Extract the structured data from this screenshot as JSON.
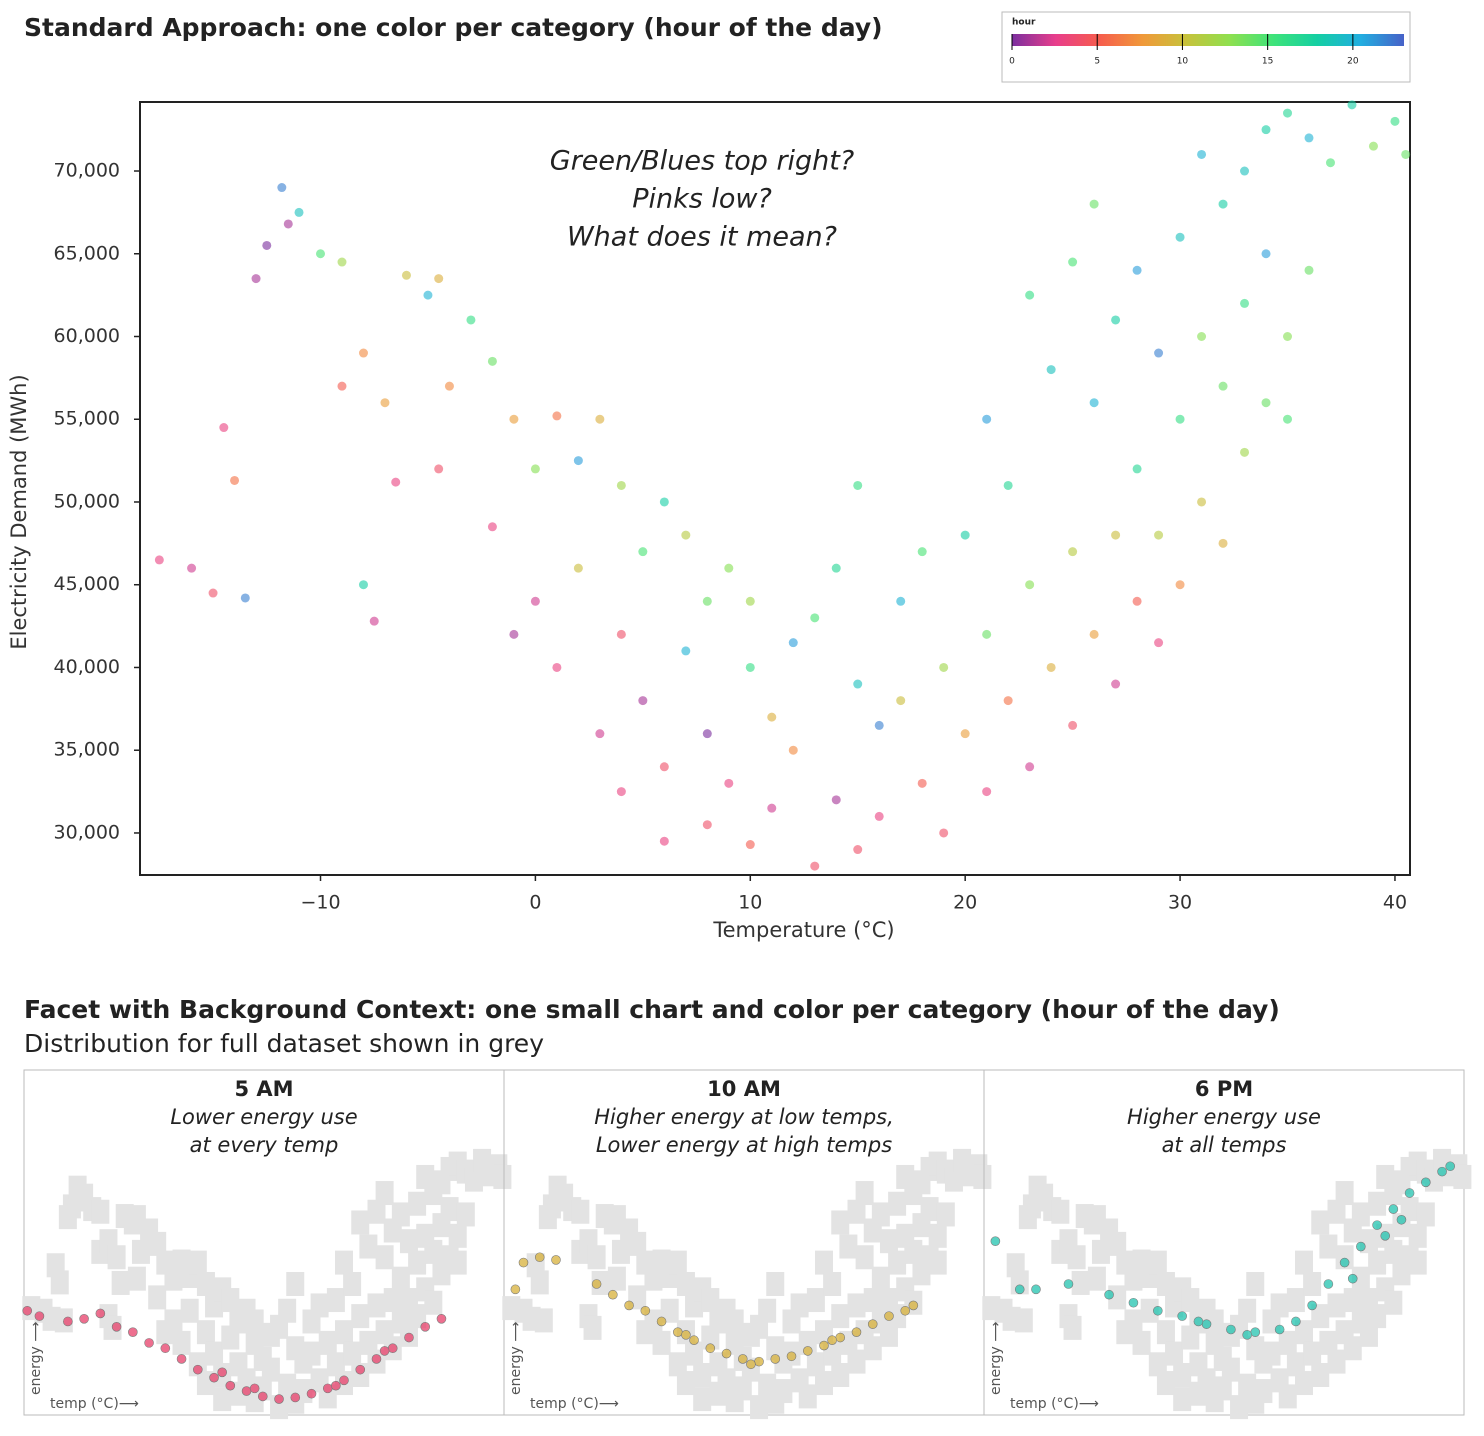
{
  "chart_data": [
    {
      "type": "scatter",
      "title": "Standard Approach: one color per category (hour of the day)",
      "xlabel": "Temperature (°C)",
      "ylabel": "Electricity Demand (MWh)",
      "annotation": [
        "Green/Blues top right?",
        "Pinks low?",
        "What does it mean?"
      ],
      "xlim": [
        -18.4,
        40.7
      ],
      "ylim": [
        27460,
        74170
      ],
      "xticks": [
        {
          "value": -10,
          "label": "−10"
        },
        0,
        10,
        20,
        30,
        40
      ],
      "yticks": [
        {
          "value": 30000,
          "label": "30,000"
        },
        {
          "value": 35000,
          "label": "35,000"
        },
        {
          "value": 40000,
          "label": "40,000"
        },
        {
          "value": 45000,
          "label": "45,000"
        },
        {
          "value": 50000,
          "label": "50,000"
        },
        {
          "value": 55000,
          "label": "55,000"
        },
        {
          "value": 60000,
          "label": "60,000"
        },
        {
          "value": 65000,
          "label": "65,000"
        },
        {
          "value": 70000,
          "label": "70,000"
        }
      ],
      "colorbar": {
        "title": "hour",
        "lim": [
          0,
          23
        ],
        "ticks": [
          0,
          5,
          10,
          15,
          20
        ],
        "colors": [
          "#7b2f9e",
          "#e83e8c",
          "#f65c4d",
          "#f0993a",
          "#c7c23b",
          "#8ee04f",
          "#3ee37a",
          "#14cfa2",
          "#22aee0",
          "#4761c8"
        ]
      },
      "x": [
        -17.5,
        -16,
        -15,
        -14.5,
        -14,
        -13.5,
        -13,
        -12.5,
        -11.8,
        -11.5,
        -11,
        -10,
        -9,
        -9,
        -8,
        -8,
        -7.5,
        -7,
        -6.5,
        -6,
        -5,
        -4.5,
        -4.5,
        -4,
        -3,
        -2,
        -2,
        -1,
        -1,
        0,
        0,
        1,
        1,
        2,
        2,
        3,
        3,
        4,
        4,
        4,
        5,
        5,
        6,
        6,
        6,
        7,
        7,
        8,
        8,
        8,
        9,
        9,
        10,
        10,
        10,
        11,
        11,
        12,
        12,
        13,
        13,
        14,
        14,
        15,
        15,
        15,
        16,
        16,
        17,
        17,
        18,
        18,
        19,
        19,
        20,
        20,
        21,
        21,
        21,
        22,
        22,
        23,
        23,
        23,
        24,
        24,
        25,
        25,
        25,
        26,
        26,
        26,
        27,
        27,
        27,
        28,
        28,
        28,
        29,
        29,
        29,
        30,
        30,
        30,
        31,
        31,
        31,
        32,
        32,
        32,
        33,
        33,
        33,
        34,
        34,
        34,
        35,
        35,
        35,
        36,
        36,
        37,
        38,
        39,
        40,
        40.5
      ],
      "y": [
        46500,
        46000,
        44500,
        54500,
        51300,
        44200,
        63500,
        65500,
        69000,
        66800,
        67500,
        65000,
        64500,
        57000,
        59000,
        45000,
        42800,
        56000,
        51200,
        63700,
        62500,
        63500,
        52000,
        57000,
        61000,
        58500,
        48500,
        55000,
        42000,
        52000,
        44000,
        55200,
        40000,
        52500,
        46000,
        55000,
        36000,
        51000,
        42000,
        32500,
        47000,
        38000,
        50000,
        34000,
        29500,
        48000,
        41000,
        44000,
        36000,
        30500,
        46000,
        33000,
        40000,
        44000,
        29300,
        37000,
        31500,
        41500,
        35000,
        28000,
        43000,
        46000,
        32000,
        51000,
        39000,
        29000,
        36500,
        31000,
        44000,
        38000,
        33000,
        47000,
        40000,
        30000,
        48000,
        36000,
        55000,
        42000,
        32500,
        51000,
        38000,
        62500,
        45000,
        34000,
        58000,
        40000,
        64500,
        47000,
        36500,
        68000,
        56000,
        42000,
        61000,
        48000,
        39000,
        64000,
        52000,
        44000,
        59000,
        48000,
        41500,
        66000,
        55000,
        45000,
        71000,
        60000,
        50000,
        68000,
        57000,
        47500,
        70000,
        62000,
        53000,
        72500,
        65000,
        56000,
        73500,
        60000,
        55000,
        72000,
        64000,
        70500,
        74000,
        71500,
        73000,
        71000
      ],
      "hour": [
        3,
        2,
        4,
        3,
        6,
        22,
        1,
        0,
        22,
        1,
        19,
        15,
        12,
        5,
        7,
        18,
        2,
        8,
        3,
        10,
        20,
        9,
        4,
        7,
        16,
        14,
        3,
        8,
        1,
        13,
        2,
        6,
        3,
        21,
        10,
        9,
        2,
        12,
        4,
        3,
        15,
        1,
        18,
        4,
        3,
        11,
        20,
        14,
        0,
        4,
        13,
        3,
        16,
        12,
        5,
        9,
        2,
        21,
        7,
        4,
        15,
        17,
        1,
        16,
        19,
        4,
        22,
        3,
        20,
        10,
        5,
        15,
        12,
        4,
        18,
        8,
        21,
        14,
        3,
        17,
        6,
        16,
        13,
        2,
        19,
        9,
        15,
        11,
        4,
        14,
        20,
        8,
        18,
        10,
        2,
        21,
        17,
        5,
        22,
        11,
        3,
        19,
        16,
        7,
        20,
        13,
        10,
        18,
        14,
        9,
        19,
        16,
        12,
        18,
        21,
        14,
        17,
        13,
        15,
        20,
        14,
        15,
        18,
        13,
        16,
        14
      ]
    },
    {
      "type": "facet-scatter",
      "title": "5 AM",
      "subtitle": [
        "Lower energy use",
        "at every temp"
      ],
      "xlabel": "temp (°C)⟶",
      "ylabel": "energy ⟶",
      "color": "#e8406a",
      "x": [
        -18,
        -16.5,
        -13,
        -11,
        -9,
        -7,
        -5,
        -3,
        -1,
        1,
        3,
        5,
        7,
        9,
        11,
        13,
        15,
        17,
        19,
        21,
        23,
        25,
        27,
        29,
        31,
        33,
        10,
        20,
        26,
        6
      ],
      "y": [
        46000,
        45000,
        44000,
        44500,
        45500,
        43000,
        42000,
        40000,
        39000,
        37000,
        35000,
        33500,
        32000,
        31000,
        30000,
        29500,
        29800,
        30500,
        31500,
        33000,
        35000,
        37000,
        39000,
        41000,
        43000,
        44500,
        31500,
        32000,
        38500,
        34500
      ]
    },
    {
      "type": "facet-scatter",
      "title": "10 AM",
      "subtitle": [
        "Higher energy at low temps,",
        "Lower energy at high temps"
      ],
      "xlabel": "temp (°C)⟶",
      "ylabel": "energy ⟶",
      "color": "#d8b13a",
      "x": [
        -17,
        -16,
        -14,
        -12,
        -7,
        -5,
        -3,
        -1,
        1,
        3,
        5,
        7,
        9,
        11,
        13,
        15,
        17,
        19,
        21,
        23,
        25,
        27,
        29,
        31,
        32,
        12,
        4,
        22
      ],
      "y": [
        50000,
        55000,
        56000,
        55500,
        51000,
        49000,
        47000,
        46000,
        44000,
        42000,
        40500,
        39000,
        38000,
        37000,
        36500,
        37000,
        37500,
        38500,
        39500,
        41000,
        42000,
        43500,
        45000,
        46000,
        47000,
        36000,
        41500,
        40500
      ]
    },
    {
      "type": "facet-scatter",
      "title": "6 PM",
      "subtitle": [
        "Higher energy use",
        "at all temps"
      ],
      "xlabel": "temp (°C)⟶",
      "ylabel": "energy ⟶",
      "color": "#22c4b0",
      "x": [
        -17,
        -14,
        -12,
        -8,
        -3,
        0,
        3,
        6,
        9,
        12,
        15,
        18,
        20,
        22,
        24,
        26,
        28,
        30,
        32,
        34,
        36,
        38,
        39,
        27,
        31,
        33,
        14,
        8
      ],
      "y": [
        59000,
        50000,
        50000,
        51000,
        49000,
        47500,
        46000,
        45000,
        43500,
        42500,
        42000,
        42500,
        44000,
        47000,
        51000,
        55000,
        58000,
        62000,
        65000,
        68000,
        70000,
        72000,
        73000,
        52000,
        60000,
        63000,
        41500,
        44000
      ]
    }
  ],
  "facet_section": {
    "title": "Facet with Background Context: one small chart and color per category (hour of the day)",
    "subtitle": "Distribution for full dataset shown in grey"
  }
}
